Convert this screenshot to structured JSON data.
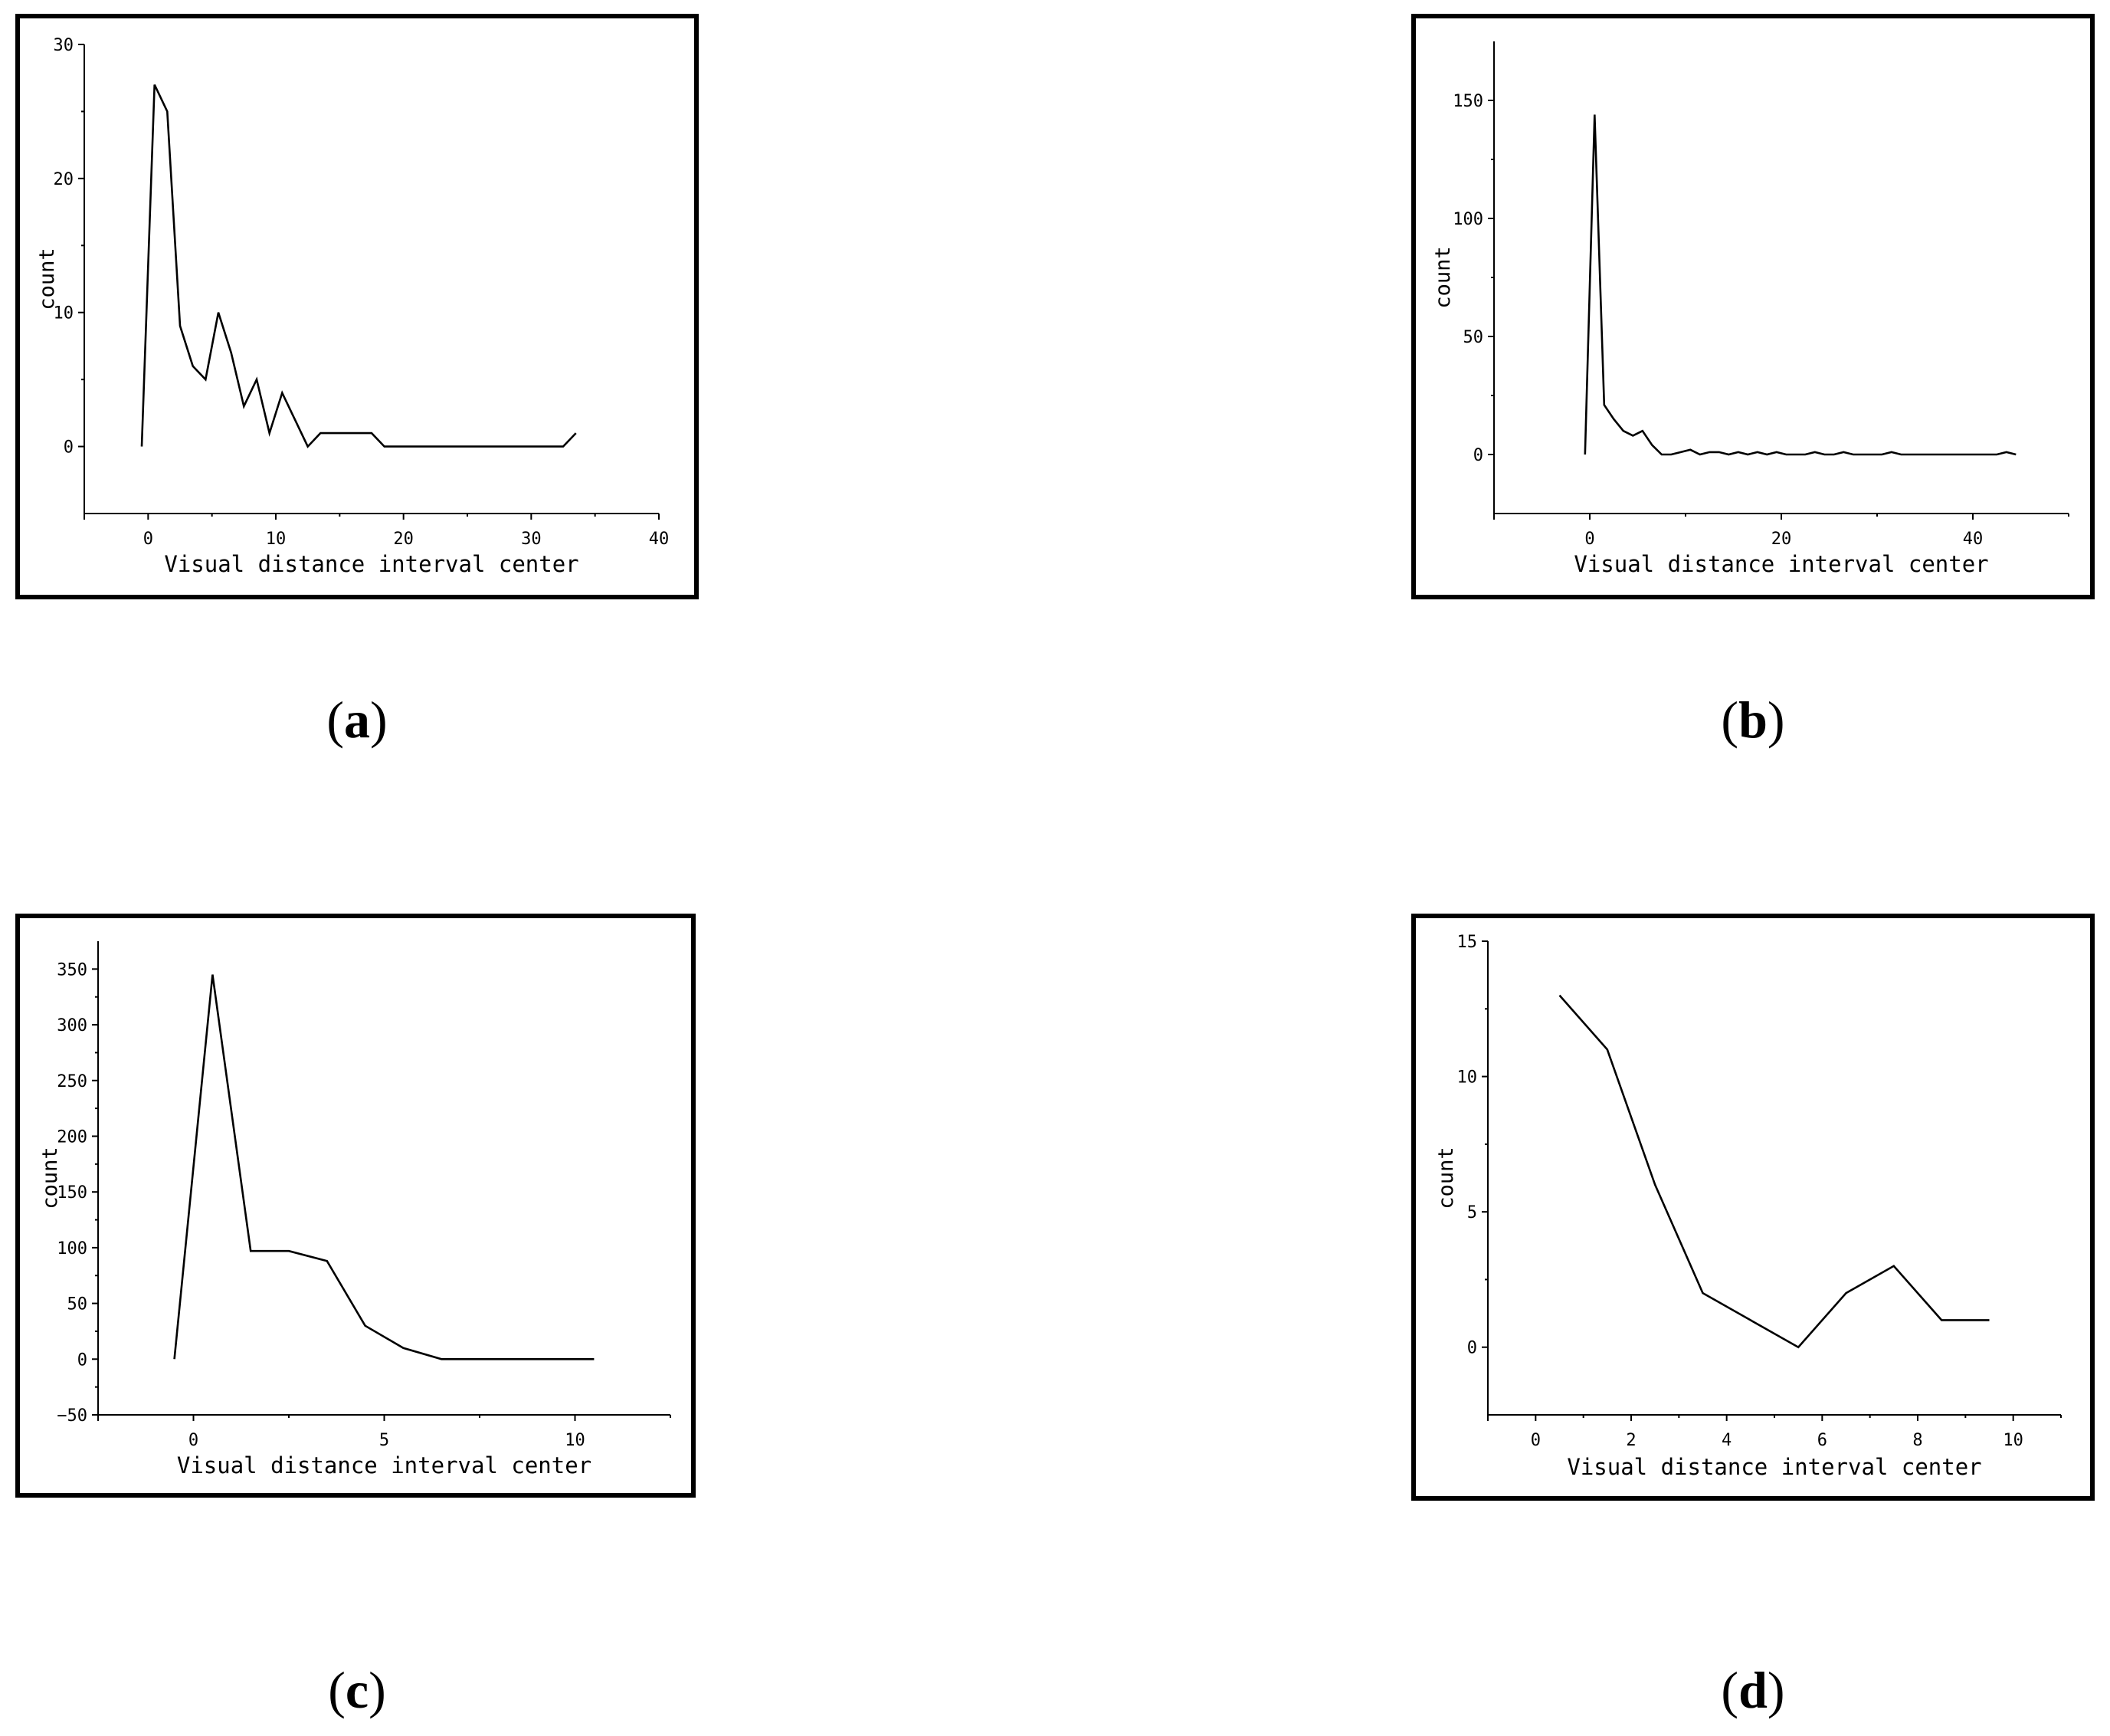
{
  "chart_data": [
    {
      "type": "line",
      "panel_label": "a",
      "xlabel": "Visual distance interval center",
      "ylabel": "count",
      "xlim": [
        -5,
        40
      ],
      "ylim": [
        -5,
        30
      ],
      "xticks": [
        0,
        10,
        20,
        30,
        40
      ],
      "yticks": [
        0,
        10,
        20,
        30
      ],
      "grid": false,
      "series": [
        {
          "x": [
            -0.5,
            0.5,
            1.5,
            2.5,
            3.5,
            4.5,
            5.5,
            6.5,
            7.5,
            8.5,
            9.5,
            10.5,
            11.5,
            12.5,
            13.5,
            14.5,
            15.5,
            16.5,
            17.5,
            18.5,
            19.5,
            20.5,
            21.5,
            22.5,
            23.5,
            24.5,
            25.5,
            26.5,
            27.5,
            28.5,
            29.5,
            30.5,
            31.5,
            32.5,
            33.5
          ],
          "y": [
            0,
            27,
            25,
            9,
            6,
            5,
            10,
            7,
            3,
            5,
            1,
            4,
            2,
            0,
            1,
            1,
            1,
            1,
            1,
            0,
            0,
            0,
            0,
            0,
            0,
            0,
            0,
            0,
            0,
            0,
            0,
            0,
            0,
            0,
            1
          ]
        }
      ]
    },
    {
      "type": "line",
      "panel_label": "b",
      "xlabel": "Visual distance interval center",
      "ylabel": "count",
      "xlim": [
        -10,
        50
      ],
      "ylim": [
        -25,
        175
      ],
      "xticks": [
        0,
        20,
        40
      ],
      "yticks": [
        0,
        50,
        100,
        150
      ],
      "grid": false,
      "series": [
        {
          "x": [
            -0.5,
            0.5,
            1.5,
            2.5,
            3.5,
            4.5,
            5.5,
            6.5,
            7.5,
            8.5,
            9.5,
            10.5,
            11.5,
            12.5,
            13.5,
            14.5,
            15.5,
            16.5,
            17.5,
            18.5,
            19.5,
            20.5,
            21.5,
            22.5,
            23.5,
            24.5,
            25.5,
            26.5,
            27.5,
            28.5,
            29.5,
            30.5,
            31.5,
            32.5,
            33.5,
            34.5,
            35.5,
            36.5,
            37.5,
            38.5,
            39.5,
            40.5,
            41.5,
            42.5,
            43.5,
            44.5
          ],
          "y": [
            0,
            144,
            21,
            15,
            10,
            8,
            10,
            4,
            0,
            0,
            1,
            2,
            0,
            1,
            1,
            0,
            1,
            0,
            1,
            0,
            1,
            0,
            0,
            0,
            1,
            0,
            0,
            1,
            0,
            0,
            0,
            0,
            1,
            0,
            0,
            0,
            0,
            0,
            0,
            0,
            0,
            0,
            0,
            0,
            1,
            0
          ]
        }
      ]
    },
    {
      "type": "line",
      "panel_label": "c",
      "xlabel": "Visual distance interval center",
      "ylabel": "count",
      "xlim": [
        -2.5,
        12.5
      ],
      "ylim": [
        -50,
        375
      ],
      "xticks": [
        0,
        5,
        10
      ],
      "yticks": [
        -50,
        0,
        50,
        100,
        150,
        200,
        250,
        300,
        350
      ],
      "grid": false,
      "series": [
        {
          "x": [
            -0.5,
            0.5,
            1.5,
            2.5,
            3.5,
            4.5,
            5.5,
            6.5,
            7.5,
            8.5,
            9.5,
            10.5
          ],
          "y": [
            0,
            345,
            97,
            97,
            88,
            30,
            10,
            0,
            0,
            0,
            0,
            0
          ]
        }
      ]
    },
    {
      "type": "line",
      "panel_label": "d",
      "xlabel": "Visual distance interval center",
      "ylabel": "count",
      "xlim": [
        -1,
        11
      ],
      "ylim": [
        -2.5,
        15
      ],
      "xticks": [
        0,
        2,
        4,
        6,
        8,
        10
      ],
      "yticks": [
        0,
        5,
        10,
        15
      ],
      "grid": false,
      "series": [
        {
          "x": [
            0.5,
            1.5,
            2.5,
            3.5,
            4.5,
            5.5,
            6.5,
            7.5,
            8.5,
            9.5
          ],
          "y": [
            13,
            11,
            6,
            2,
            1,
            0,
            2,
            3,
            1,
            1
          ]
        }
      ]
    }
  ]
}
